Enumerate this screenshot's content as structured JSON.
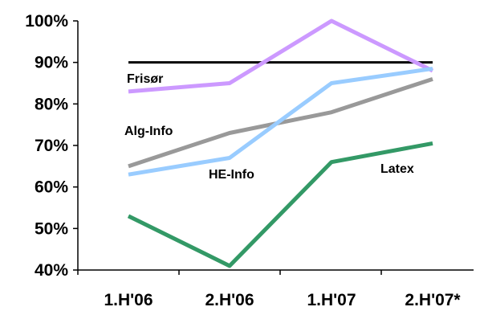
{
  "chart_data": {
    "type": "line",
    "categories": [
      "1.H'06",
      "2.H'06",
      "1.H'07",
      "2.H'07*"
    ],
    "ylim": [
      40,
      100
    ],
    "yticks": [
      40,
      50,
      60,
      70,
      80,
      90,
      100
    ],
    "ytick_labels": [
      "40%",
      "50%",
      "60%",
      "70%",
      "80%",
      "90%",
      "100%"
    ],
    "title": "",
    "xlabel": "",
    "ylabel": "",
    "grid": false,
    "legend": "none",
    "series": [
      {
        "name": "Frisør",
        "color": "#cc99ff",
        "values": [
          83,
          85,
          100,
          88
        ]
      },
      {
        "name": "Alg-Info",
        "color": "#999999",
        "values": [
          65,
          73,
          78,
          86
        ]
      },
      {
        "name": "HE-Info",
        "color": "#99ccff",
        "values": [
          63,
          67,
          85,
          88.5
        ]
      },
      {
        "name": "Latex",
        "color": "#339966",
        "values": [
          53,
          41,
          66,
          70.5
        ]
      }
    ],
    "reference_line": {
      "value": 90,
      "color": "#000000"
    }
  }
}
